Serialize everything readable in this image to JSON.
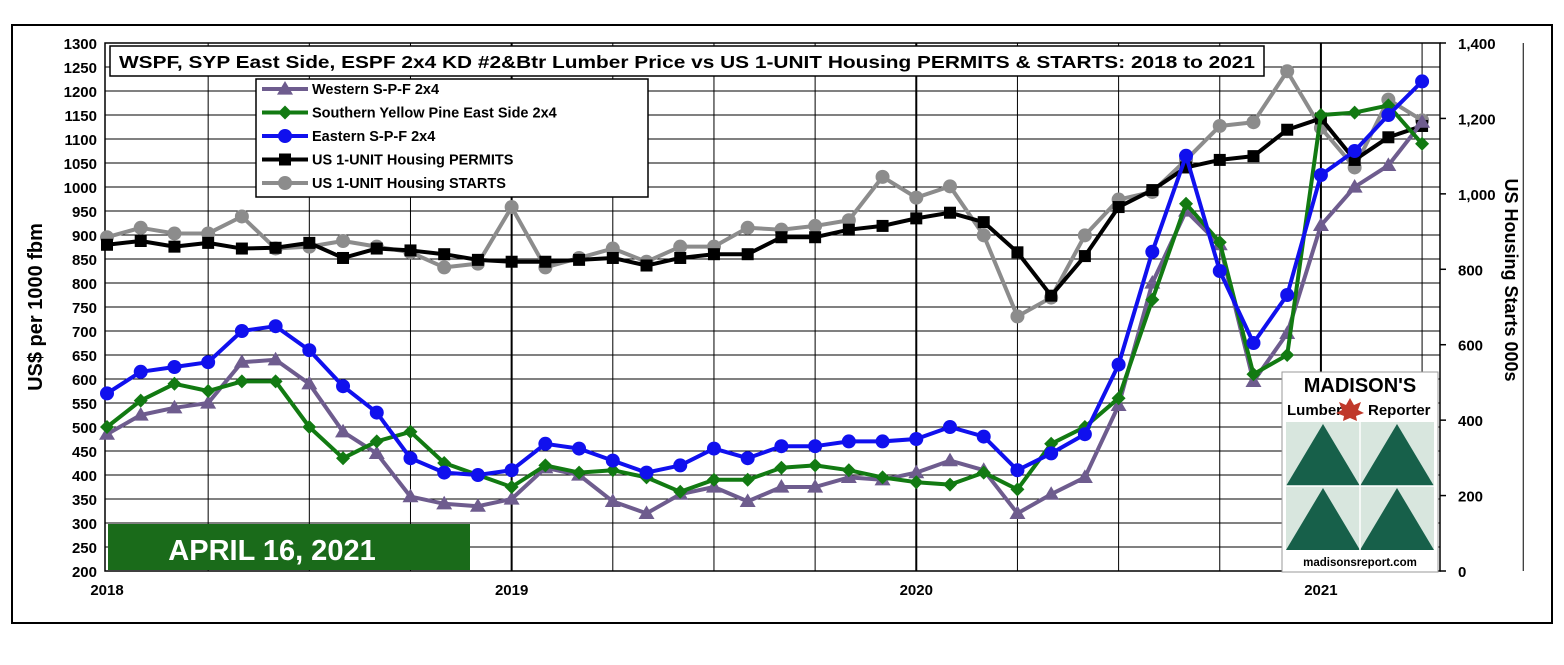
{
  "chart_data": {
    "type": "line",
    "title": "WSPF, SYP East Side, ESPF 2x4 KD #2&Btr Lumber Price  vs US 1-UNIT Housing PERMITS & STARTS: 2018 to 2021",
    "ylabel": "US$ per 1000 fbm",
    "y2label": "US Housing  Starts 000s",
    "ylim": [
      200,
      1300
    ],
    "y2lim": [
      0,
      1400
    ],
    "y_ticks": [
      "200",
      "250",
      "300",
      "350",
      "400",
      "450",
      "500",
      "550",
      "600",
      "650",
      "700",
      "750",
      "800",
      "850",
      "900",
      "950",
      "1000",
      "1050",
      "1100",
      "1150",
      "1200",
      "1250",
      "1300"
    ],
    "y2_ticks": [
      "0",
      "200",
      "400",
      "600",
      "800",
      "1,000",
      "1,200",
      "1,400"
    ],
    "x_tick_labels": [
      "2018",
      "2019",
      "2020",
      "2021"
    ],
    "grid": true,
    "legend": "top-left",
    "date_badge": "APRIL 16, 2021",
    "logo": {
      "line1": "MADISON'S",
      "line2a": "Lumber",
      "line2b": "Reporter",
      "url": "madisonsreport.com"
    },
    "x": [
      "2018-01",
      "2018-02",
      "2018-03",
      "2018-04",
      "2018-05",
      "2018-06",
      "2018-07",
      "2018-08",
      "2018-09",
      "2018-10",
      "2018-11",
      "2018-12",
      "2019-01",
      "2019-02",
      "2019-03",
      "2019-04",
      "2019-05",
      "2019-06",
      "2019-07",
      "2019-08",
      "2019-09",
      "2019-10",
      "2019-11",
      "2019-12",
      "2020-01",
      "2020-02",
      "2020-03",
      "2020-04",
      "2020-05",
      "2020-06",
      "2020-07",
      "2020-08",
      "2020-09",
      "2020-10",
      "2020-11",
      "2020-12",
      "2021-01",
      "2021-02",
      "2021-03",
      "2021-04"
    ],
    "series": [
      {
        "name": "Western S-P-F 2x4",
        "axis": "left",
        "marker": "triangle",
        "color": "#6e5c8e",
        "values": [
          485,
          525,
          540,
          550,
          635,
          640,
          590,
          490,
          445,
          355,
          340,
          335,
          350,
          415,
          400,
          345,
          320,
          360,
          375,
          345,
          375,
          375,
          395,
          390,
          405,
          430,
          410,
          320,
          360,
          395,
          545,
          800,
          950,
          880,
          595,
          695,
          920,
          1000,
          1045,
          1135
        ]
      },
      {
        "name": "Southern Yellow Pine East Side 2x4",
        "axis": "left",
        "marker": "diamond",
        "color": "#127a12",
        "values": [
          500,
          555,
          590,
          575,
          595,
          595,
          500,
          435,
          470,
          490,
          425,
          400,
          375,
          420,
          405,
          410,
          395,
          365,
          390,
          390,
          415,
          420,
          410,
          395,
          385,
          380,
          405,
          370,
          465,
          500,
          560,
          765,
          965,
          885,
          610,
          650,
          1150,
          1155,
          1170,
          1090
        ]
      },
      {
        "name": "Eastern S-P-F 2x4",
        "axis": "left",
        "marker": "circle",
        "color": "#1010ee",
        "values": [
          570,
          615,
          625,
          635,
          700,
          710,
          660,
          585,
          530,
          435,
          405,
          400,
          410,
          465,
          455,
          430,
          405,
          420,
          455,
          435,
          460,
          460,
          470,
          470,
          475,
          500,
          480,
          410,
          445,
          485,
          630,
          865,
          1065,
          825,
          675,
          775,
          1025,
          1075,
          1150,
          1220
        ]
      },
      {
        "name": "US 1-UNIT Housing PERMITS",
        "axis": "right",
        "marker": "square",
        "color": "#000000",
        "values": [
          865,
          875,
          860,
          870,
          855,
          857,
          870,
          830,
          855,
          850,
          840,
          825,
          820,
          820,
          825,
          830,
          810,
          830,
          840,
          840,
          885,
          885,
          905,
          915,
          935,
          950,
          925,
          845,
          730,
          835,
          965,
          1010,
          1070,
          1090,
          1100,
          1170,
          1200,
          1090,
          1150,
          1180
        ]
      },
      {
        "name": "US 1-UNIT Housing STARTS",
        "axis": "right",
        "marker": "circle",
        "color": "#8c8c8c",
        "values": [
          885,
          910,
          895,
          895,
          940,
          855,
          860,
          875,
          860,
          845,
          805,
          815,
          965,
          805,
          830,
          855,
          820,
          860,
          860,
          910,
          905,
          915,
          930,
          1045,
          990,
          1020,
          890,
          675,
          725,
          890,
          985,
          1005,
          1090,
          1180,
          1190,
          1325,
          1175,
          1070,
          1250,
          1195
        ]
      }
    ]
  }
}
